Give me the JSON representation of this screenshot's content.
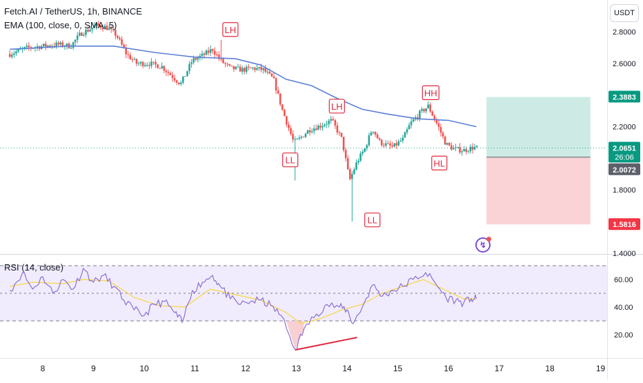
{
  "header": {
    "title": "Fetch.AI / TetherUS, 1h, BINANCE",
    "indicator": "EMA (100, close, 0, SMA, 5)",
    "currency": "USDT"
  },
  "rsi_label": "RSI (14, close)",
  "badges": {
    "current_price": "2.0651",
    "countdown": "26:06",
    "take_profit": "2.3883",
    "entry": "2.0072",
    "stop_loss": "1.5816"
  },
  "annotations": {
    "lh1": "LH",
    "ll1": "LL",
    "lh2": "LH",
    "ll2": "LL",
    "hh": "HH",
    "hl": "HL"
  },
  "colors": {
    "up": "#26a69a",
    "down": "#ef5350",
    "ema": "#5b7fd6",
    "rsi": "#8a6fd1",
    "rsi_ma": "#f5d542",
    "annotation": "#e0273d",
    "divergence": "#e0273d",
    "tp_zone": "#cdebe4",
    "sl_zone": "#f9d3d5"
  },
  "chart_data": [
    {
      "type": "candlestick",
      "title": "Fetch.AI / TetherUS, 1h, BINANCE",
      "x_ticks": [
        "8",
        "9",
        "10",
        "11",
        "12",
        "13",
        "14",
        "15",
        "16",
        "17",
        "18",
        "19"
      ],
      "y_ticks": [
        "1.4000",
        "1.8000",
        "2.2000",
        "2.6000",
        "2.8000"
      ],
      "ylim": [
        1.4,
        2.95
      ],
      "price_path": [
        [
          7.35,
          2.66
        ],
        [
          7.7,
          2.7
        ],
        [
          8.0,
          2.71
        ],
        [
          8.3,
          2.72
        ],
        [
          8.55,
          2.71
        ],
        [
          8.75,
          2.79
        ],
        [
          8.95,
          2.82
        ],
        [
          9.05,
          2.84
        ],
        [
          9.25,
          2.83
        ],
        [
          9.45,
          2.78
        ],
        [
          9.65,
          2.66
        ],
        [
          9.85,
          2.6
        ],
        [
          10.1,
          2.6
        ],
        [
          10.35,
          2.58
        ],
        [
          10.55,
          2.52
        ],
        [
          10.72,
          2.47
        ],
        [
          10.95,
          2.62
        ],
        [
          11.15,
          2.65
        ],
        [
          11.35,
          2.69
        ],
        [
          11.5,
          2.62
        ],
        [
          11.7,
          2.57
        ],
        [
          11.95,
          2.56
        ],
        [
          12.15,
          2.57
        ],
        [
          12.35,
          2.56
        ],
        [
          12.55,
          2.5
        ],
        [
          12.72,
          2.31
        ],
        [
          12.95,
          2.1
        ],
        [
          13.05,
          2.12
        ],
        [
          13.25,
          2.18
        ],
        [
          13.5,
          2.21
        ],
        [
          13.7,
          2.24
        ],
        [
          13.9,
          2.12
        ],
        [
          14.05,
          1.86
        ],
        [
          14.2,
          1.98
        ],
        [
          14.35,
          2.06
        ],
        [
          14.5,
          2.19
        ],
        [
          14.65,
          2.1
        ],
        [
          14.9,
          2.07
        ],
        [
          15.1,
          2.12
        ],
        [
          15.25,
          2.22
        ],
        [
          15.45,
          2.29
        ],
        [
          15.6,
          2.33
        ],
        [
          15.8,
          2.2
        ],
        [
          15.95,
          2.09
        ],
        [
          16.1,
          2.06
        ],
        [
          16.3,
          2.05
        ],
        [
          16.5,
          2.07
        ],
        [
          16.55,
          2.065
        ]
      ],
      "price_lows": [
        {
          "x": 12.98,
          "y": 1.86
        },
        {
          "x": 14.1,
          "y": 1.6
        }
      ],
      "price_highs": [
        {
          "x": 11.5,
          "y": 2.75
        }
      ],
      "ema": {
        "name": "EMA (100, close, 0, SMA, 5)",
        "points": [
          [
            7.35,
            2.69
          ],
          [
            8.5,
            2.71
          ],
          [
            9.4,
            2.71
          ],
          [
            10.2,
            2.67
          ],
          [
            11.0,
            2.64
          ],
          [
            11.8,
            2.63
          ],
          [
            12.3,
            2.59
          ],
          [
            12.8,
            2.5
          ],
          [
            13.3,
            2.46
          ],
          [
            13.8,
            2.38
          ],
          [
            14.3,
            2.31
          ],
          [
            14.8,
            2.28
          ],
          [
            15.4,
            2.25
          ],
          [
            16.0,
            2.24
          ],
          [
            16.55,
            2.2
          ]
        ]
      },
      "position": {
        "start_x": 16.75,
        "end_x": 18.8,
        "take_profit": 2.3883,
        "entry": 2.0072,
        "stop_loss": 1.5816
      },
      "current_price": 2.0651
    },
    {
      "type": "line",
      "title": "RSI (14, close)",
      "y_ticks": [
        "20.00",
        "40.00",
        "60.00"
      ],
      "ylim": [
        5,
        72
      ],
      "bands": [
        30,
        50,
        70
      ],
      "series": [
        {
          "name": "RSI",
          "points": [
            [
              7.35,
              52
            ],
            [
              7.6,
              65
            ],
            [
              7.8,
              53
            ],
            [
              8.0,
              62
            ],
            [
              8.2,
              50
            ],
            [
              8.4,
              60
            ],
            [
              8.6,
              53
            ],
            [
              8.8,
              68
            ],
            [
              9.0,
              58
            ],
            [
              9.2,
              63
            ],
            [
              9.4,
              55
            ],
            [
              9.6,
              45
            ],
            [
              9.8,
              38
            ],
            [
              10.0,
              34
            ],
            [
              10.2,
              42
            ],
            [
              10.4,
              44
            ],
            [
              10.6,
              36
            ],
            [
              10.75,
              29
            ],
            [
              10.95,
              52
            ],
            [
              11.15,
              58
            ],
            [
              11.35,
              63
            ],
            [
              11.5,
              55
            ],
            [
              11.7,
              46
            ],
            [
              11.9,
              42
            ],
            [
              12.1,
              44
            ],
            [
              12.3,
              45
            ],
            [
              12.5,
              41
            ],
            [
              12.7,
              34
            ],
            [
              12.98,
              9
            ],
            [
              13.15,
              24
            ],
            [
              13.4,
              35
            ],
            [
              13.6,
              42
            ],
            [
              13.85,
              40
            ],
            [
              14.0,
              38
            ],
            [
              14.12,
              28
            ],
            [
              14.3,
              40
            ],
            [
              14.5,
              56
            ],
            [
              14.7,
              48
            ],
            [
              14.9,
              52
            ],
            [
              15.1,
              55
            ],
            [
              15.3,
              60
            ],
            [
              15.55,
              65
            ],
            [
              15.75,
              57
            ],
            [
              15.95,
              47
            ],
            [
              16.15,
              45
            ],
            [
              16.3,
              43
            ],
            [
              16.45,
              46
            ],
            [
              16.55,
              46
            ]
          ]
        },
        {
          "name": "RSI MA",
          "points": [
            [
              7.35,
              55
            ],
            [
              7.8,
              58
            ],
            [
              8.4,
              57
            ],
            [
              8.8,
              60
            ],
            [
              9.3,
              59
            ],
            [
              9.8,
              47
            ],
            [
              10.3,
              41
            ],
            [
              10.8,
              40
            ],
            [
              11.3,
              53
            ],
            [
              11.8,
              49
            ],
            [
              12.3,
              45
            ],
            [
              12.8,
              36
            ],
            [
              13.1,
              28
            ],
            [
              13.5,
              32
            ],
            [
              13.9,
              38
            ],
            [
              14.3,
              42
            ],
            [
              14.7,
              50
            ],
            [
              15.1,
              55
            ],
            [
              15.5,
              60
            ],
            [
              15.9,
              53
            ],
            [
              16.3,
              46
            ],
            [
              16.55,
              46
            ]
          ]
        }
      ],
      "divergence_line": {
        "from": [
          12.98,
          9
        ],
        "to": [
          14.2,
          18
        ]
      }
    }
  ]
}
